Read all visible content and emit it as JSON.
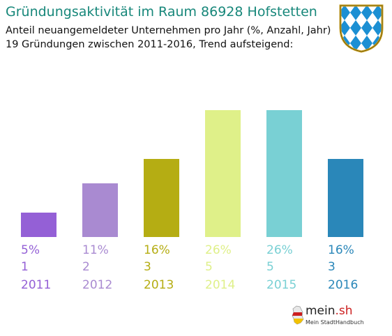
{
  "header": {
    "title": "Gründungsaktivität im Raum 86928 Hofstetten",
    "subtitle_line1": "Anteil neuangemeldeter Unternehmen pro Jahr (%, Anzahl, Jahr)",
    "subtitle_line2": "19 Gründungen zwischen 2011-2016, Trend aufsteigend:"
  },
  "crest": {
    "icon": "bavarian-lozenge-crest-icon",
    "colors": [
      "#1b8fd3",
      "#ffffff"
    ]
  },
  "chart_data": {
    "type": "bar",
    "categories": [
      "2011",
      "2012",
      "2013",
      "2014",
      "2015",
      "2016"
    ],
    "percent_labels": [
      "5%",
      "11%",
      "16%",
      "26%",
      "26%",
      "16%"
    ],
    "values": [
      5,
      11,
      16,
      26,
      26,
      16
    ],
    "counts": [
      "1",
      "2",
      "3",
      "5",
      "5",
      "3"
    ],
    "colors": [
      "#9460d6",
      "#a98ad1",
      "#b5ad13",
      "#dff089",
      "#79d0d4",
      "#2a87b9"
    ],
    "xlabel": "",
    "ylabel": "",
    "ylim": [
      0,
      26
    ],
    "grid": false,
    "legend": "none"
  },
  "logo": {
    "name": "mein",
    "tld": ".sh",
    "tagline": "Mein StadtHandbuch",
    "icon": "germany-map-icon"
  }
}
